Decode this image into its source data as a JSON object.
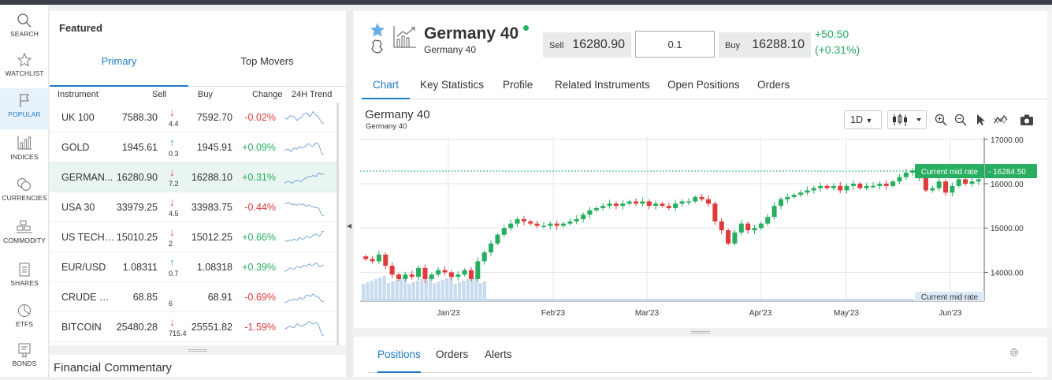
{
  "colors": {
    "accent": "#1e7bc4",
    "up": "#27ae60",
    "down": "#e03a3a",
    "current_rate_bg": "#27ae60",
    "volume": "#c9dcef"
  },
  "nav": {
    "items": [
      {
        "label": "SEARCH",
        "icon": "search-icon"
      },
      {
        "label": "WATCHLIST",
        "icon": "star-icon"
      },
      {
        "label": "POPULAR",
        "icon": "flag-icon"
      },
      {
        "label": "INDICES",
        "icon": "bar-chart-icon"
      },
      {
        "label": "CURRENCIES",
        "icon": "coins-icon"
      },
      {
        "label": "COMMODITY",
        "icon": "commodity-icon"
      },
      {
        "label": "SHARES",
        "icon": "document-icon"
      },
      {
        "label": "ETFS",
        "icon": "pie-icon"
      },
      {
        "label": "BONDS",
        "icon": "bond-icon"
      }
    ],
    "active": "POPULAR"
  },
  "featured": {
    "title": "Featured",
    "tabs": [
      "Primary",
      "Top Movers"
    ],
    "columns": [
      "Instrument",
      "Sell",
      "Buy",
      "Change",
      "24H Trend"
    ],
    "rows": [
      {
        "name": "UK 100",
        "sell": "7588.30",
        "dir": "down",
        "diff": "4.4",
        "buy": "7592.70",
        "change": "-0.02%"
      },
      {
        "name": "GOLD",
        "sell": "1945.61",
        "dir": "up",
        "diff": "0.3",
        "buy": "1945.91",
        "change": "+0.09%"
      },
      {
        "name": "GERMAN...",
        "sell": "16280.90",
        "dir": "down",
        "diff": "7.2",
        "buy": "16288.10",
        "change": "+0.31%",
        "selected": true
      },
      {
        "name": "USA 30",
        "sell": "33979.25",
        "dir": "down",
        "diff": "4.5",
        "buy": "33983.75",
        "change": "-0.44%"
      },
      {
        "name": "US TECH ...",
        "sell": "15010.25",
        "dir": "down",
        "diff": "2",
        "buy": "15012.25",
        "change": "+0.66%"
      },
      {
        "name": "EUR/USD",
        "sell": "1.08311",
        "dir": "up",
        "diff": "0.7",
        "buy": "1.08318",
        "change": "+0.39%"
      },
      {
        "name": "CRUDE O...",
        "sell": "68.85",
        "dir": "none",
        "diff": "6",
        "buy": "68.91",
        "change": "-0.69%"
      },
      {
        "name": "BITCOIN",
        "sell": "25480.28",
        "dir": "down",
        "diff": "715.4",
        "buy": "25551.82",
        "change": "-1.59%"
      }
    ],
    "commentary_title": "Financial Commentary"
  },
  "instrument": {
    "name": "Germany 40",
    "subtitle": "Germany 40",
    "sell_label": "Sell",
    "sell": "16280.90",
    "quantity": "0.1",
    "buy_label": "Buy",
    "buy": "16288.10",
    "change_abs": "+50.50",
    "change_pct": "(+0.31%)"
  },
  "main_tabs": [
    "Chart",
    "Key Statistics",
    "Profile",
    "Related Instruments",
    "Open Positions",
    "Orders"
  ],
  "chart_toolbar": {
    "timeframe": "1D"
  },
  "chart_data": {
    "type": "candlestick",
    "title": "Germany 40",
    "subtitle": "Germany 40",
    "x_ticks": [
      "Jan'23",
      "Feb'23",
      "Mar'23",
      "Apr'23",
      "May'23",
      "Jun'23"
    ],
    "y_ticks": [
      "17000.00",
      "16000.00",
      "15000.00",
      "14000.00"
    ],
    "ylim": [
      13350,
      17050
    ],
    "current_rate_label": "Current mid rate",
    "current_rate": "16284.50",
    "volume_label": "Current mid rate",
    "close_series": [
      14300,
      14250,
      14400,
      14150,
      13950,
      13850,
      13950,
      13900,
      14100,
      13850,
      13950,
      14050,
      14000,
      13900,
      13950,
      14050,
      13850,
      14250,
      14450,
      14650,
      14850,
      15000,
      15100,
      15200,
      15150,
      15100,
      15050,
      15050,
      15100,
      15050,
      15100,
      15150,
      15200,
      15300,
      15400,
      15450,
      15500,
      15550,
      15500,
      15550,
      15600,
      15550,
      15600,
      15500,
      15550,
      15500,
      15450,
      15550,
      15600,
      15600,
      15700,
      15650,
      15550,
      15150,
      14950,
      14650,
      14900,
      15100,
      14950,
      15000,
      15100,
      15250,
      15500,
      15650,
      15700,
      15750,
      15800,
      15850,
      15900,
      15950,
      15900,
      15950,
      15850,
      15950,
      16000,
      15900,
      15950,
      15950,
      16000,
      15950,
      16050,
      16150,
      16250,
      16300,
      16150,
      15850,
      15900,
      16050,
      15800,
      15950,
      16100,
      16000,
      16050,
      16100
    ]
  },
  "bottom": {
    "tabs": [
      "Positions",
      "Orders",
      "Alerts"
    ]
  }
}
